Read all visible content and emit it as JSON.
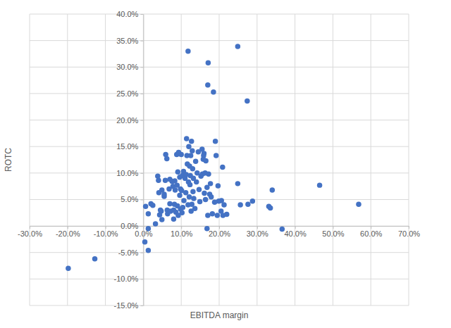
{
  "chart_data": {
    "type": "scatter",
    "x_label": "EBITDA margin",
    "y_label": "ROTC",
    "color": "#4472c4",
    "marker": "circle",
    "grid": true,
    "x": [
      -19.8,
      -12.8,
      0.4,
      1.3,
      1.3,
      11.8,
      24.9,
      17.1,
      17.0,
      18.5,
      27.4,
      46.5,
      56.8,
      36.6,
      34.0,
      33.1,
      33.5,
      28.8,
      27.6,
      25.6,
      24.9,
      16.8,
      0.6,
      1.3,
      2.0,
      2.5,
      3.2,
      3.8,
      4.0,
      4.1,
      4.3,
      4.5,
      4.7,
      4.9,
      4.9,
      5.5,
      5.5,
      5.8,
      5.9,
      6.2,
      6.3,
      6.4,
      6.8,
      7.0,
      7.0,
      7.2,
      7.6,
      7.8,
      8.0,
      8.0,
      8.2,
      8.3,
      8.4,
      8.6,
      8.8,
      8.9,
      9.0,
      9.1,
      9.2,
      9.3,
      9.6,
      9.6,
      9.8,
      9.8,
      10.0,
      10.1,
      10.2,
      10.3,
      10.4,
      10.6,
      10.7,
      11.0,
      11.2,
      11.3,
      11.4,
      11.5,
      11.6,
      11.8,
      11.9,
      12.0,
      12.1,
      12.2,
      12.3,
      12.4,
      12.5,
      12.6,
      12.7,
      12.8,
      12.9,
      13.0,
      13.1,
      13.2,
      13.3,
      13.6,
      13.8,
      14.0,
      14.2,
      14.5,
      14.7,
      14.9,
      15.2,
      15.5,
      15.6,
      15.8,
      15.9,
      16.0,
      16.1,
      16.3,
      16.4,
      16.5,
      16.8,
      17.0,
      17.2,
      17.5,
      17.7,
      17.9,
      18.2,
      18.8,
      19.0,
      19.2,
      19.5,
      19.7,
      19.9,
      20.5,
      20.6,
      20.9,
      21.0,
      21.3,
      22.0
    ],
    "values": [
      -8.0,
      -6.2,
      -3.0,
      -4.6,
      -0.5,
      33.0,
      33.9,
      30.8,
      26.6,
      25.3,
      23.6,
      7.7,
      4.1,
      -0.6,
      6.8,
      3.7,
      3.4,
      4.7,
      4.1,
      4.0,
      8.0,
      -0.5,
      3.7,
      2.3,
      4.2,
      3.9,
      0.4,
      9.4,
      8.6,
      6.3,
      2.1,
      3.0,
      2.8,
      6.8,
      1.2,
      5.6,
      6.0,
      8.6,
      13.5,
      12.7,
      3.0,
      2.3,
      7.0,
      8.8,
      4.2,
      2.8,
      8.4,
      7.5,
      3.0,
      1.3,
      4.1,
      8.5,
      6.8,
      2.6,
      13.5,
      7.7,
      3.8,
      10.2,
      2.0,
      13.9,
      5.8,
      9.2,
      7.0,
      3.2,
      13.5,
      6.7,
      2.5,
      9.5,
      3.5,
      10.3,
      4.8,
      9.0,
      6.3,
      9.7,
      16.5,
      13.3,
      11.7,
      4.0,
      8.3,
      15.0,
      5.5,
      11.3,
      7.8,
      9.5,
      13.3,
      2.8,
      16.0,
      4.1,
      14.2,
      10.8,
      6.5,
      9.0,
      5.2,
      3.3,
      12.2,
      8.3,
      10.0,
      14.0,
      6.9,
      4.6,
      9.4,
      14.5,
      9.8,
      12.6,
      13.3,
      13.7,
      6.2,
      10.0,
      5.0,
      12.3,
      7.3,
      2.0,
      9.8,
      6.0,
      8.0,
      5.5,
      2.3,
      4.5,
      16.0,
      13.3,
      2.0,
      7.6,
      4.7,
      2.8,
      4.8,
      11.1,
      2.0,
      4.0,
      2.2
    ],
    "xlim": [
      -30,
      70
    ],
    "ylim": [
      -15,
      40
    ],
    "xticks": [
      {
        "value": -30,
        "label": "-30.0%"
      },
      {
        "value": -20,
        "label": "-20.0%"
      },
      {
        "value": -10,
        "label": "-10.0%"
      },
      {
        "value": 0,
        "label": "0.0%"
      },
      {
        "value": 10,
        "label": "10.0%"
      },
      {
        "value": 20,
        "label": "20.0%"
      },
      {
        "value": 30,
        "label": "30.0%"
      },
      {
        "value": 40,
        "label": "40.0%"
      },
      {
        "value": 50,
        "label": "50.0%"
      },
      {
        "value": 60,
        "label": "60.0%"
      },
      {
        "value": 70,
        "label": "70.0%"
      }
    ],
    "yticks": [
      {
        "value": -15,
        "label": "-15.0%"
      },
      {
        "value": -10,
        "label": "-10.0%"
      },
      {
        "value": -5,
        "label": "-5.0%"
      },
      {
        "value": 0,
        "label": "0.0%"
      },
      {
        "value": 5,
        "label": "5.0%"
      },
      {
        "value": 10,
        "label": "10.0%"
      },
      {
        "value": 15,
        "label": "15.0%"
      },
      {
        "value": 20,
        "label": "20.0%"
      },
      {
        "value": 25,
        "label": "25.0%"
      },
      {
        "value": 30,
        "label": "30.0%"
      },
      {
        "value": 35,
        "label": "35.0%"
      },
      {
        "value": 40,
        "label": "40.0%"
      }
    ]
  }
}
